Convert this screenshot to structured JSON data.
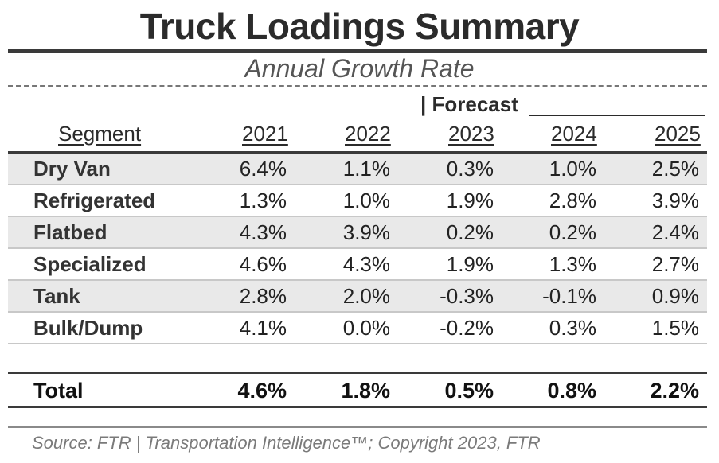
{
  "chart_data": {
    "type": "table",
    "title": "Truck Loadings Summary",
    "subtitle": "Annual Growth Rate",
    "forecast_label": "| Forecast",
    "segment_header": "Segment",
    "years": [
      "2021",
      "2022",
      "2023",
      "2024",
      "2025"
    ],
    "rows": [
      {
        "segment": "Dry Van",
        "values": [
          "6.4%",
          "1.1%",
          "0.3%",
          "1.0%",
          "2.5%"
        ]
      },
      {
        "segment": "Refrigerated",
        "values": [
          "1.3%",
          "1.0%",
          "1.9%",
          "2.8%",
          "3.9%"
        ]
      },
      {
        "segment": "Flatbed",
        "values": [
          "4.3%",
          "3.9%",
          "0.2%",
          "0.2%",
          "2.4%"
        ]
      },
      {
        "segment": "Specialized",
        "values": [
          "4.6%",
          "4.3%",
          "1.9%",
          "1.3%",
          "2.7%"
        ]
      },
      {
        "segment": "Tank",
        "values": [
          "2.8%",
          "2.0%",
          "-0.3%",
          "-0.1%",
          "0.9%"
        ]
      },
      {
        "segment": "Bulk/Dump",
        "values": [
          "4.1%",
          "0.0%",
          "-0.2%",
          "0.3%",
          "1.5%"
        ]
      }
    ],
    "total": {
      "segment": "Total",
      "values": [
        "4.6%",
        "1.8%",
        "0.5%",
        "0.8%",
        "2.2%"
      ]
    },
    "source": "Source: FTR | Transportation Intelligence™; Copyright 2023, FTR"
  }
}
